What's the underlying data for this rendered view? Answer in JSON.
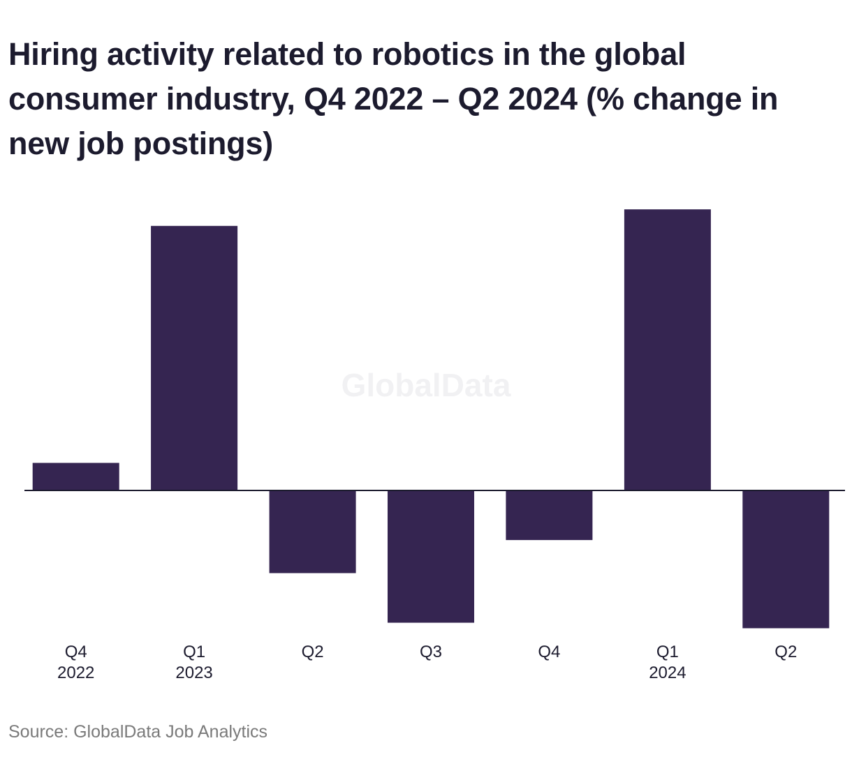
{
  "title": "Hiring activity related to robotics in the global consumer industry, Q4 2022 – Q2 2024 (% change in new job postings)",
  "source": "Source: GlobalData Job Analytics",
  "watermark": "GlobalData",
  "colors": {
    "bar": "#352551",
    "axis": "#1c1b2e",
    "tick_text": "#1c1b2e",
    "watermark": "#f1f1f3",
    "source_text": "#7a7a7a"
  },
  "chart_data": {
    "type": "bar",
    "title": "Hiring activity related to robotics in the global consumer industry, Q4 2022 – Q2 2024 (% change in new job postings)",
    "xlabel": "",
    "ylabel": "",
    "categories": [
      [
        "Q4",
        "2022"
      ],
      [
        "Q1",
        "2023"
      ],
      [
        "Q2"
      ],
      [
        "Q3"
      ],
      [
        "Q4"
      ],
      [
        "Q1",
        "2024"
      ],
      [
        "Q2"
      ]
    ],
    "values": [
      5,
      48,
      -15,
      -24,
      -9,
      51,
      -25
    ],
    "ylim": [
      -30,
      55
    ],
    "grid": false,
    "y_axis_visible": false,
    "zero_line": true,
    "legend": "none"
  }
}
